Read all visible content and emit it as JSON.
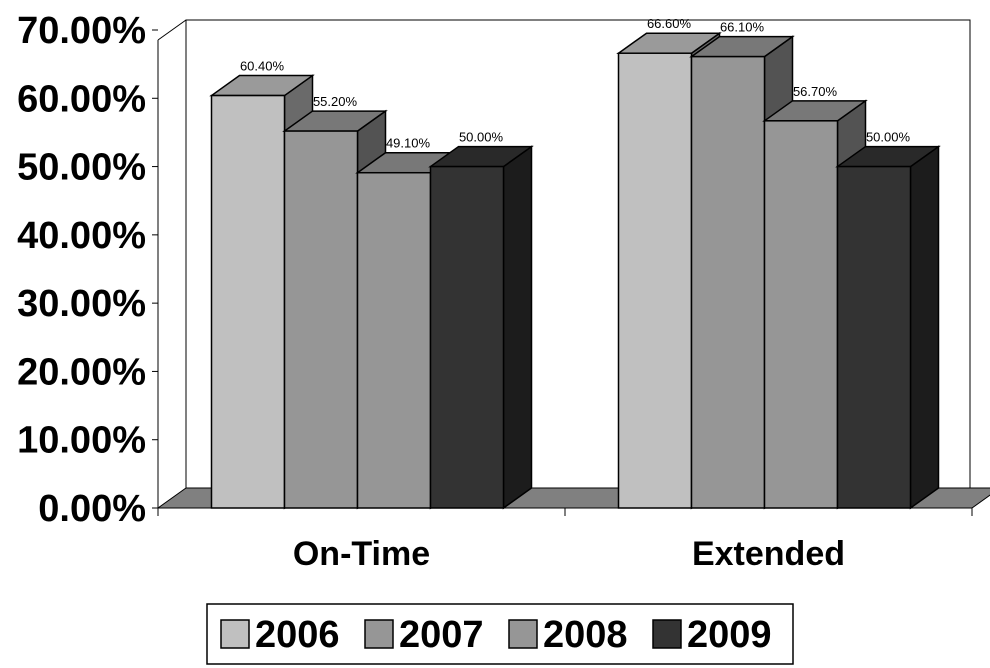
{
  "chart_data": {
    "type": "bar",
    "categories": [
      "On-Time",
      "Extended"
    ],
    "series": [
      {
        "name": "2006",
        "values": [
          60.4,
          66.6
        ],
        "color": "#c0c0c0",
        "labels": [
          "60.40%",
          "66.60%"
        ]
      },
      {
        "name": "2007",
        "values": [
          55.2,
          66.1
        ],
        "color": "#969696",
        "labels": [
          "55.20%",
          "66.10%"
        ]
      },
      {
        "name": "2008",
        "values": [
          49.1,
          56.7
        ],
        "color": "#969696",
        "labels": [
          "49.10%",
          "56.70%"
        ]
      },
      {
        "name": "2009",
        "values": [
          50.0,
          50.0
        ],
        "color": "#333333",
        "labels": [
          "50.00%",
          "50.00%"
        ]
      }
    ],
    "yticks": [
      "0.00%",
      "10.00%",
      "20.00%",
      "30.00%",
      "40.00%",
      "50.00%",
      "60.00%",
      "70.00%"
    ],
    "ylim": [
      0,
      70
    ],
    "legend_position": "bottom",
    "style": "3d-clustered-column"
  }
}
